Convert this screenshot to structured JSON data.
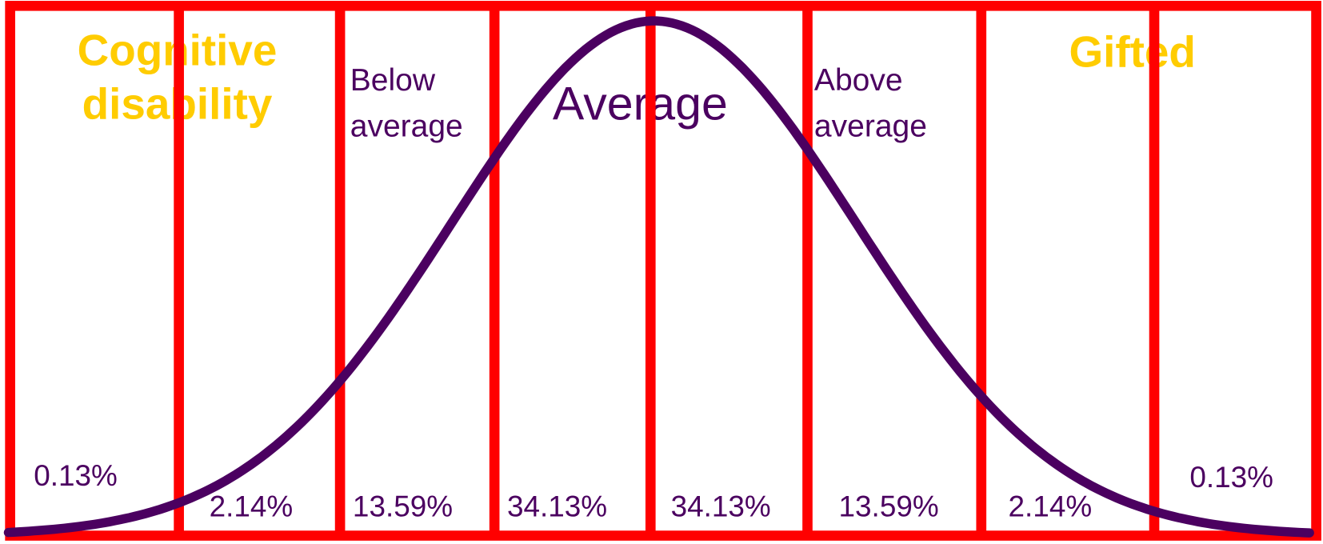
{
  "sections": [
    {
      "percent": "0.13%"
    },
    {
      "percent": "2.14%"
    },
    {
      "percent": "13.59%"
    },
    {
      "percent": "34.13%"
    },
    {
      "percent": "34.13%"
    },
    {
      "percent": "13.59%"
    },
    {
      "percent": "2.14%"
    },
    {
      "percent": "0.13%"
    }
  ],
  "labels": {
    "cognitive": [
      "Cognitive",
      "disability"
    ],
    "below": [
      "Below",
      "average"
    ],
    "average": "Average",
    "above": [
      "Above",
      "average"
    ],
    "gifted": "Gifted"
  }
}
